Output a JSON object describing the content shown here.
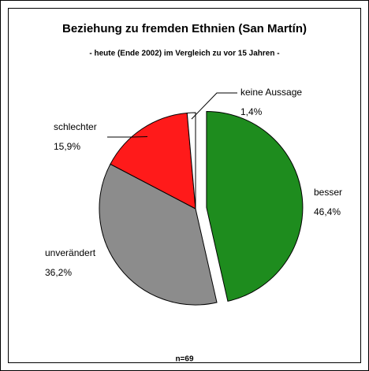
{
  "chart_data": {
    "type": "pie",
    "title": "Beziehung zu fremden Ethnien (San Martín)",
    "subtitle": "- heute (Ende 2002) im Vergleich zu vor 15 Jahren -",
    "annotation": "n=69",
    "categories": [
      "besser",
      "unverändert",
      "schlechter",
      "keine Aussage"
    ],
    "values": [
      46.4,
      36.2,
      15.9,
      1.4
    ],
    "value_labels": [
      "46,4%",
      "36,2%",
      "15,9%",
      "1,4%"
    ],
    "colors": [
      "#1e8c1e",
      "#8c8c8c",
      "#ff1a1a",
      "#ffffff"
    ]
  }
}
